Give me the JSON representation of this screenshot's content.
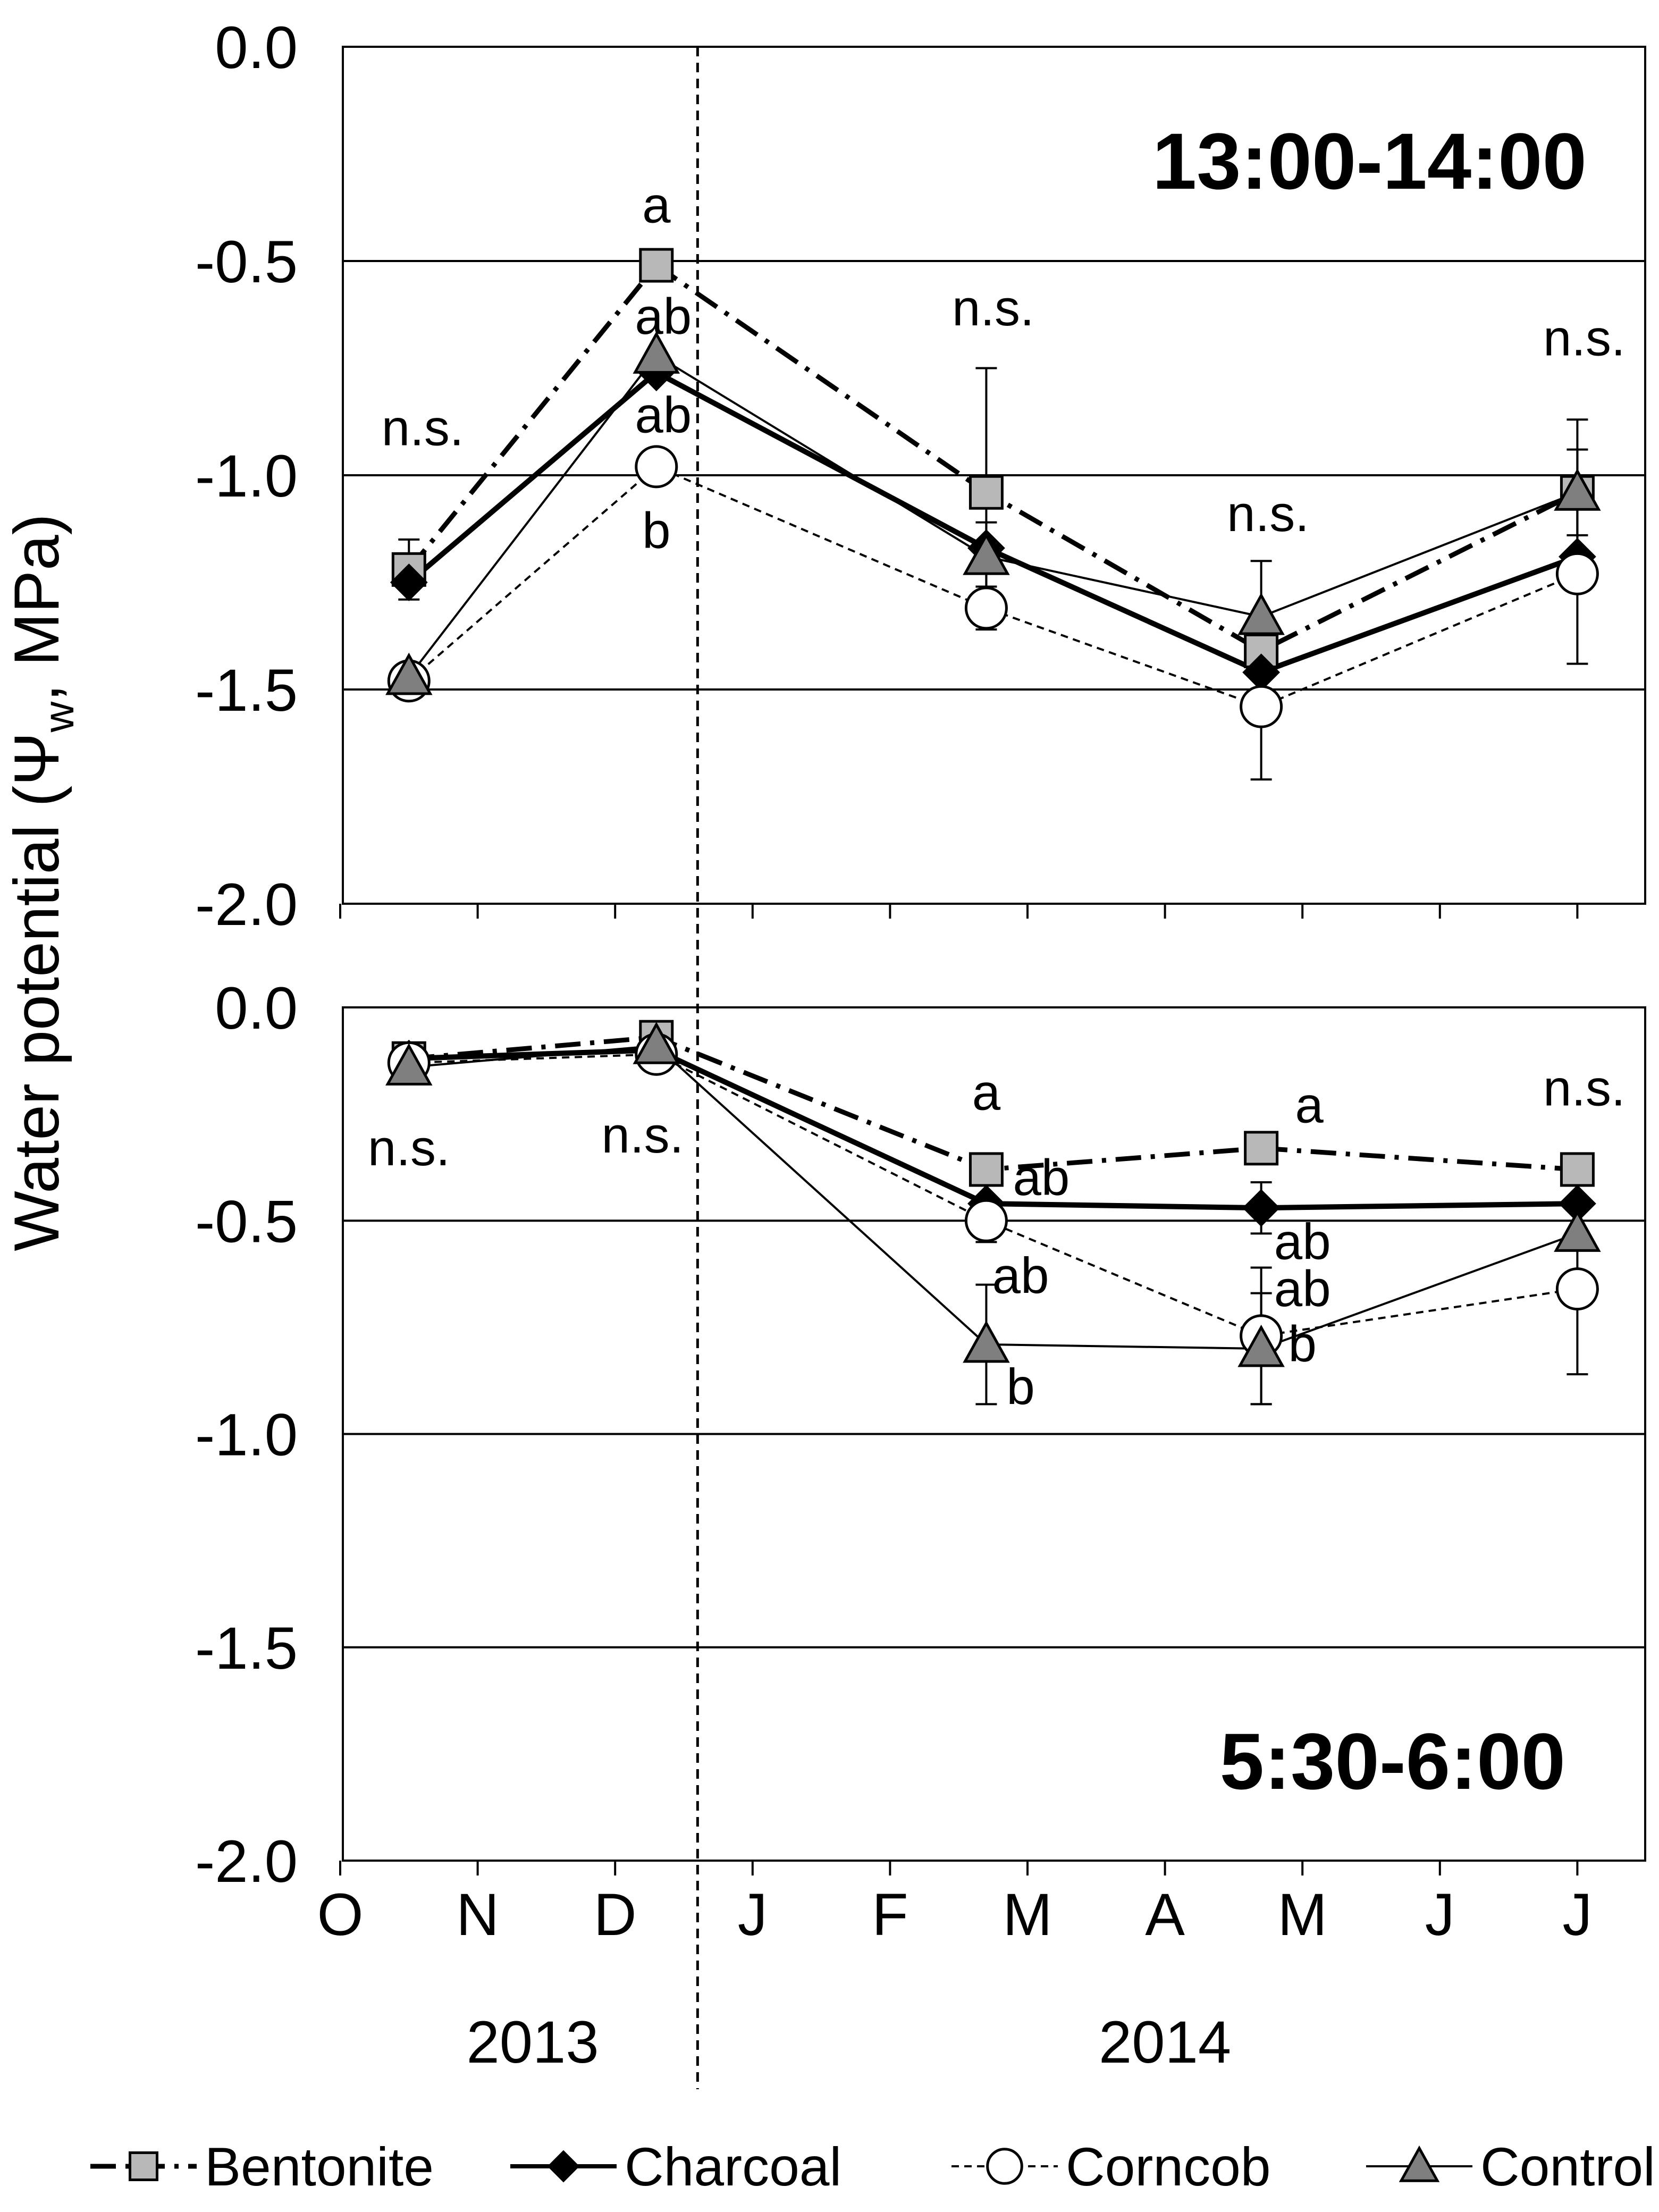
{
  "chart_data": {
    "type": "line",
    "ylabel": "Water potential (Ψw, MPa)",
    "ylabel_main": "Water potential (Ψ",
    "ylabel_sub": "w",
    "ylabel_tail": ", MPa)",
    "ylim": [
      -2.0,
      0.0
    ],
    "yticks": [
      "0.0",
      "-0.5",
      "-1.0",
      "-1.5",
      "-2.0"
    ],
    "xlim_months": [
      0,
      9.5
    ],
    "month_labels": [
      "O",
      "N",
      "D",
      "J",
      "F",
      "M",
      "A",
      "M",
      "J",
      "J"
    ],
    "year_labels": [
      {
        "label": "2013",
        "center": 1.4
      },
      {
        "label": "2014",
        "center": 6.0
      }
    ],
    "year_divider_month": 2.6,
    "series_styles": [
      {
        "name": "Bentonite",
        "marker": "square",
        "color": "#b8b8b8",
        "dash": "dashdot"
      },
      {
        "name": "Charcoal",
        "marker": "diamond",
        "color": "#000000",
        "dash": "solid-thick"
      },
      {
        "name": "Corncob",
        "marker": "circle",
        "color": "#ffffff",
        "dash": "dotted"
      },
      {
        "name": "Control",
        "marker": "triangle",
        "color": "#7f7f7f",
        "dash": "solid-thin"
      }
    ],
    "panels": [
      {
        "title": "13:00-14:00",
        "x": [
          0.5,
          2.3,
          4.7,
          6.7,
          9.0
        ],
        "series": [
          {
            "name": "Bentonite",
            "values": [
              -1.22,
              -0.51,
              -1.04,
              -1.41,
              -1.04
            ],
            "err": [
              0.07,
              0,
              0.29,
              0,
              0.17
            ]
          },
          {
            "name": "Charcoal",
            "values": [
              -1.25,
              -0.76,
              -1.17,
              -1.46,
              -1.19
            ],
            "err": [
              0,
              0,
              0,
              0,
              0
            ]
          },
          {
            "name": "Corncob",
            "values": [
              -1.48,
              -0.98,
              -1.31,
              -1.54,
              -1.23
            ],
            "err": [
              0,
              0,
              0.05,
              0.17,
              0.21
            ]
          },
          {
            "name": "Control",
            "values": [
              -1.47,
              -0.72,
              -1.19,
              -1.33,
              -1.04
            ],
            "err": [
              0,
              0,
              0.08,
              0.13,
              0.1
            ]
          }
        ],
        "annotations": [
          {
            "text": "n.s.",
            "x": 0.6,
            "y": -0.93
          },
          {
            "text": "a",
            "x": 2.3,
            "y": -0.41
          },
          {
            "text": "ab",
            "x": 2.35,
            "y": -0.67
          },
          {
            "text": "ab",
            "x": 2.35,
            "y": -0.9
          },
          {
            "text": "b",
            "x": 2.3,
            "y": -1.17
          },
          {
            "text": "n.s.",
            "x": 4.75,
            "y": -0.65
          },
          {
            "text": "n.s.",
            "x": 6.75,
            "y": -1.13
          },
          {
            "text": "n.s.",
            "x": 9.05,
            "y": -0.72
          }
        ]
      },
      {
        "title": "5:30-6:00",
        "x": [
          0.5,
          2.3,
          4.7,
          6.7,
          9.0
        ],
        "series": [
          {
            "name": "Bentonite",
            "values": [
              -0.12,
              -0.07,
              -0.38,
              -0.33,
              -0.38
            ],
            "err": [
              0,
              0,
              0,
              0,
              0
            ]
          },
          {
            "name": "Charcoal",
            "values": [
              -0.12,
              -0.1,
              -0.46,
              -0.47,
              -0.46
            ],
            "err": [
              0,
              0,
              0,
              0.06,
              0
            ]
          },
          {
            "name": "Corncob",
            "values": [
              -0.13,
              -0.11,
              -0.5,
              -0.77,
              -0.66
            ],
            "err": [
              0,
              0,
              0.05,
              0.16,
              0.2
            ]
          },
          {
            "name": "Control",
            "values": [
              -0.14,
              -0.09,
              -0.79,
              -0.8,
              -0.53
            ],
            "err": [
              0,
              0,
              0.14,
              0.13,
              0
            ]
          }
        ],
        "annotations": [
          {
            "text": "n.s.",
            "x": 0.5,
            "y": -0.37
          },
          {
            "text": "n.s.",
            "x": 2.2,
            "y": -0.34
          },
          {
            "text": "a",
            "x": 4.7,
            "y": -0.24
          },
          {
            "text": "ab",
            "x": 5.1,
            "y": -0.44
          },
          {
            "text": "ab",
            "x": 4.95,
            "y": -0.67
          },
          {
            "text": "b",
            "x": 4.95,
            "y": -0.93
          },
          {
            "text": "a",
            "x": 7.05,
            "y": -0.27
          },
          {
            "text": "ab",
            "x": 7.0,
            "y": -0.59
          },
          {
            "text": "ab",
            "x": 7.0,
            "y": -0.7
          },
          {
            "text": "b",
            "x": 7.0,
            "y": -0.83
          },
          {
            "text": "n.s.",
            "x": 9.05,
            "y": -0.23
          }
        ]
      }
    ],
    "legend": [
      "Bentonite",
      "Charcoal",
      "Corncob",
      "Control"
    ],
    "legend_position": "bottom"
  }
}
